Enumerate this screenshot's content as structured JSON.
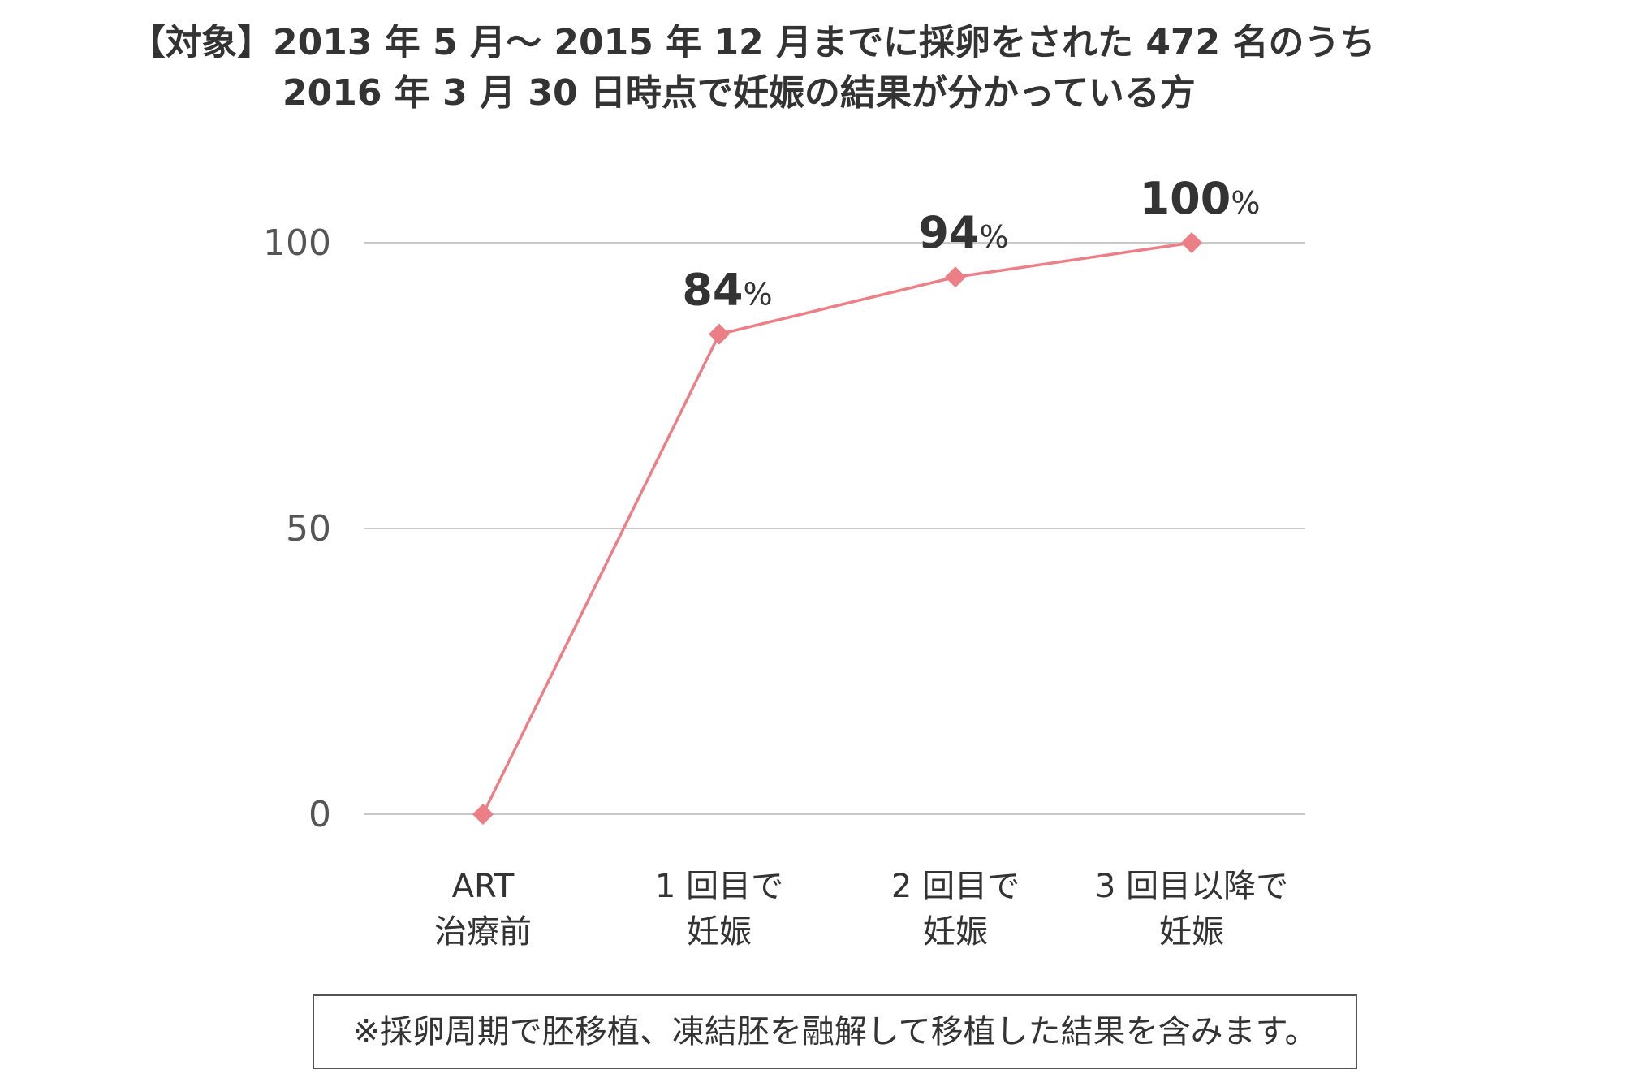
{
  "title": {
    "line1": "【対象】2013 年 5 月〜 2015 年 12 月までに採卵をされた 472 名のうち",
    "line2": "2016 年 3 月 30 日時点で妊娠の結果が分かっている方"
  },
  "note": "※採卵周期で胚移植、凍結胚を融解して移植した結果を含みます。",
  "chart_data": {
    "type": "line",
    "categories": [
      [
        "ART",
        "治療前"
      ],
      [
        "1 回目で",
        "妊娠"
      ],
      [
        "2 回目で",
        "妊娠"
      ],
      [
        "3 回目以降で",
        "妊娠"
      ]
    ],
    "series": [
      {
        "values": [
          0,
          84,
          94,
          100
        ],
        "color": "#ec7f86"
      }
    ],
    "data_labels": [
      null,
      {
        "value": "84",
        "unit": "%"
      },
      {
        "value": "94",
        "unit": "%"
      },
      {
        "value": "100",
        "unit": "%"
      }
    ],
    "yticks": [
      "0",
      "50",
      "100"
    ],
    "ylim": [
      0,
      100
    ],
    "grid": true,
    "marker": "diamond",
    "colors": {
      "line": "#ec7f86",
      "grid": "#c8c8c8",
      "text": "#333333",
      "tick": "#555555"
    }
  }
}
